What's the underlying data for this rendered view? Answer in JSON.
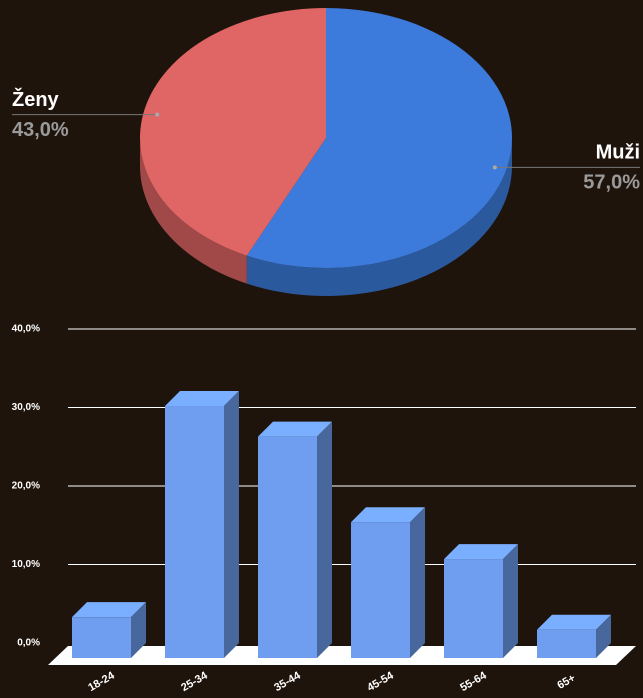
{
  "chart_data": [
    {
      "type": "pie",
      "labels": [
        "Muži",
        "Ženy"
      ],
      "values": [
        57,
        43
      ],
      "value_labels": [
        "57,0%",
        "43,0%"
      ],
      "colors": [
        "#3c7bdb",
        "#e06666"
      ]
    },
    {
      "type": "bar",
      "categories": [
        "18-24",
        "25-34",
        "35-44",
        "45-54",
        "55-64",
        "65+"
      ],
      "values": [
        5.2,
        32.1,
        28.2,
        17.3,
        12.6,
        3.6
      ],
      "color": "#6f9ef0",
      "ylim": [
        0,
        40
      ],
      "yticks": [
        {
          "value": 0,
          "label": "0,0%"
        },
        {
          "value": 10,
          "label": "10,0%"
        },
        {
          "value": 20,
          "label": "20,0%"
        },
        {
          "value": 30,
          "label": "30,0%"
        },
        {
          "value": 40,
          "label": "40,0%"
        }
      ],
      "grid": true
    }
  ]
}
